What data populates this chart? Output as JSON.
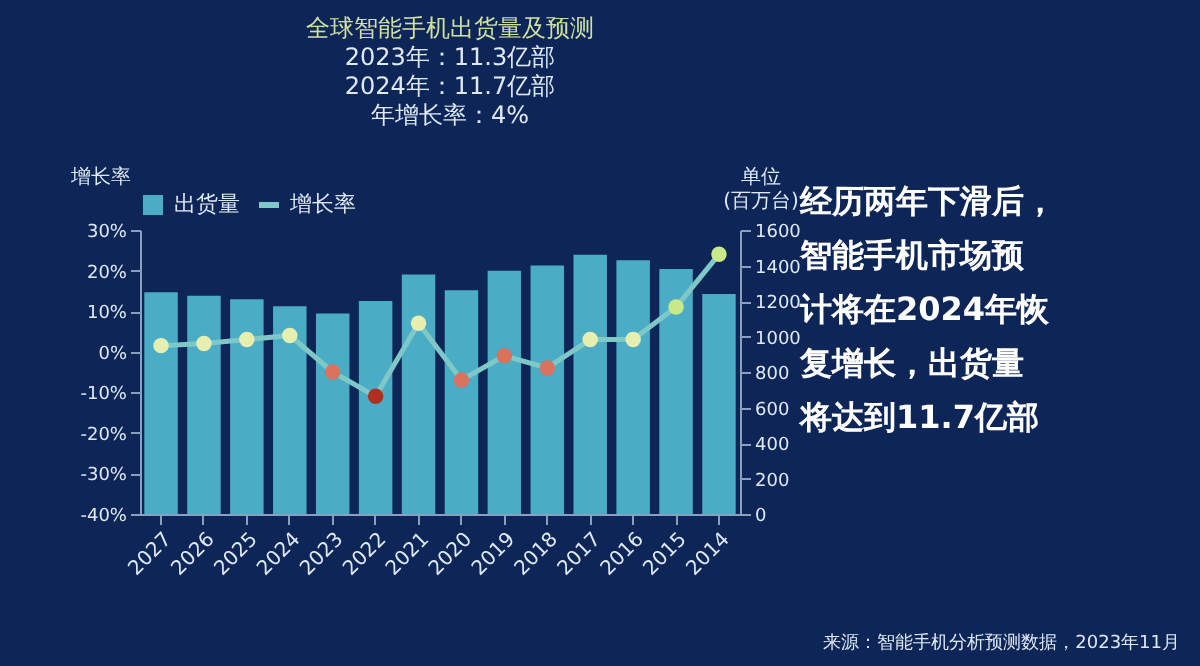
{
  "chart_data": {
    "type": "bar",
    "title": "全球智能手机出货量及预测",
    "categories": [
      "2027",
      "2026",
      "2025",
      "2024",
      "2023",
      "2022",
      "2021",
      "2020",
      "2019",
      "2018",
      "2017",
      "2016",
      "2015",
      "2014"
    ],
    "series": [
      {
        "name": "出货量",
        "axis": "y2",
        "color": "#4fb3cc",
        "values": [
          1250,
          1230,
          1210,
          1170,
          1130,
          1200,
          1350,
          1260,
          1370,
          1400,
          1460,
          1430,
          1380,
          1240
        ]
      },
      {
        "name": "增长率",
        "type": "line",
        "axis": "y",
        "color": "#7fc8c8",
        "values": [
          1.5,
          2,
          3,
          4,
          -5,
          -11,
          7,
          -7,
          -1,
          -4,
          3,
          3,
          11,
          24
        ],
        "colors": [
          "#e6efb0",
          "#e6efb0",
          "#e6efb0",
          "#e6efb0",
          "#d9725f",
          "#b0301f",
          "#e6efb0",
          "#d9725f",
          "#d9725f",
          "#d9725f",
          "#e6efb0",
          "#e6efb0",
          "#c9e88a",
          "#c9e88a"
        ]
      }
    ],
    "ylabel": "增长率",
    "y2label": "单位\n(百万台)",
    "ylim": [
      -40,
      30
    ],
    "yticks": [
      {
        "value": -40,
        "label": "-40%"
      },
      {
        "value": -30,
        "label": "-30%"
      },
      {
        "value": -20,
        "label": "-20%"
      },
      {
        "value": -10,
        "label": "-10%"
      },
      {
        "value": 0,
        "label": "0%"
      },
      {
        "value": 10,
        "label": "10%"
      },
      {
        "value": 20,
        "label": "20%"
      },
      {
        "value": 30,
        "label": "30%"
      }
    ],
    "y2lim": [
      0,
      1600
    ],
    "y2ticks": [
      0,
      200,
      400,
      600,
      800,
      1000,
      1200,
      1400,
      1600
    ],
    "legend": "top",
    "grid": false,
    "marker": "circle",
    "annotations": [
      "2023年：11.3亿部",
      "2024年：11.7亿部",
      "年增长率：4%",
      "经历两年下滑后，",
      "智能手机市场预",
      "计将在2024年恢",
      "复增长，出货量",
      "将达到11.7亿部",
      "来源：智能手机分析预测数据，2023年11月"
    ]
  }
}
